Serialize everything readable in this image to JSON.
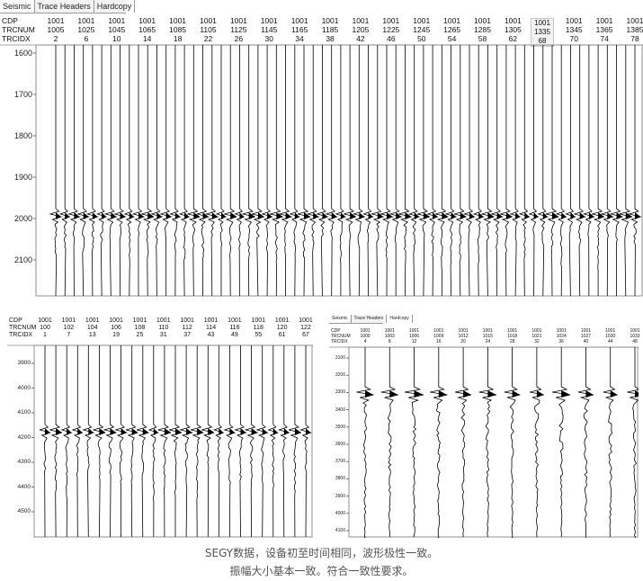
{
  "panel1": {
    "tabs": [
      "Seismic",
      "Trace Headers",
      "Hardcopy"
    ],
    "header_labels": [
      "CDP",
      "TRCNUM",
      "TRCIDX"
    ],
    "cdp": "1001",
    "trcnum": [
      "1005",
      "1025",
      "1045",
      "1065",
      "1085",
      "1105",
      "1125",
      "1145",
      "1165",
      "1185",
      "1205",
      "1225",
      "1245",
      "1265",
      "1285",
      "1305",
      "1325",
      "1345",
      "1365",
      "1385"
    ],
    "trcidx": [
      "2",
      "6",
      "10",
      "14",
      "18",
      "22",
      "26",
      "30",
      "34",
      "38",
      "42",
      "46",
      "50",
      "54",
      "58",
      "62",
      "66",
      "70",
      "74",
      "78"
    ],
    "highlighted": {
      "cdp": "1001",
      "trcnum": "1335",
      "trcidx": "68"
    },
    "y_ticks": [
      "1600",
      "1700",
      "1800",
      "1900",
      "2000",
      "2100"
    ]
  },
  "panel2": {
    "header_labels": [
      "CDP",
      "TRCNUM",
      "TRCIDX"
    ],
    "cdp": "1001",
    "trcnum": [
      "100",
      "102",
      "104",
      "106",
      "108",
      "110",
      "112",
      "114",
      "116",
      "118",
      "120",
      "122"
    ],
    "trcidx": [
      "1",
      "7",
      "13",
      "19",
      "25",
      "31",
      "37",
      "43",
      "49",
      "55",
      "61",
      "67"
    ],
    "y_ticks": [
      "3900",
      "4000",
      "4100",
      "4200",
      "4300",
      "4400",
      "4500"
    ]
  },
  "panel3": {
    "tabs": [
      "Seismic",
      "Trace Headers",
      "Hardcopy"
    ],
    "header_labels": [
      "CDP",
      "TRCNUM",
      "TRCIDX"
    ],
    "cdp": "1001",
    "trcnum": [
      "1000",
      "1003",
      "1006",
      "1009",
      "1012",
      "1015",
      "1018",
      "1021",
      "1024",
      "1027",
      "1030",
      "1033"
    ],
    "trcidx": [
      "4",
      "8",
      "12",
      "16",
      "20",
      "24",
      "28",
      "32",
      "36",
      "40",
      "44",
      "48"
    ],
    "y_ticks": [
      "3100",
      "3200",
      "3300",
      "3400",
      "3500",
      "3600",
      "3700",
      "3800",
      "3900",
      "4000",
      "4100"
    ]
  },
  "caption": {
    "line1": "SEGY数据，设备初至时间相同，波形极性一致。",
    "line2": "振幅大小基本一致。符合一致性要求。"
  }
}
